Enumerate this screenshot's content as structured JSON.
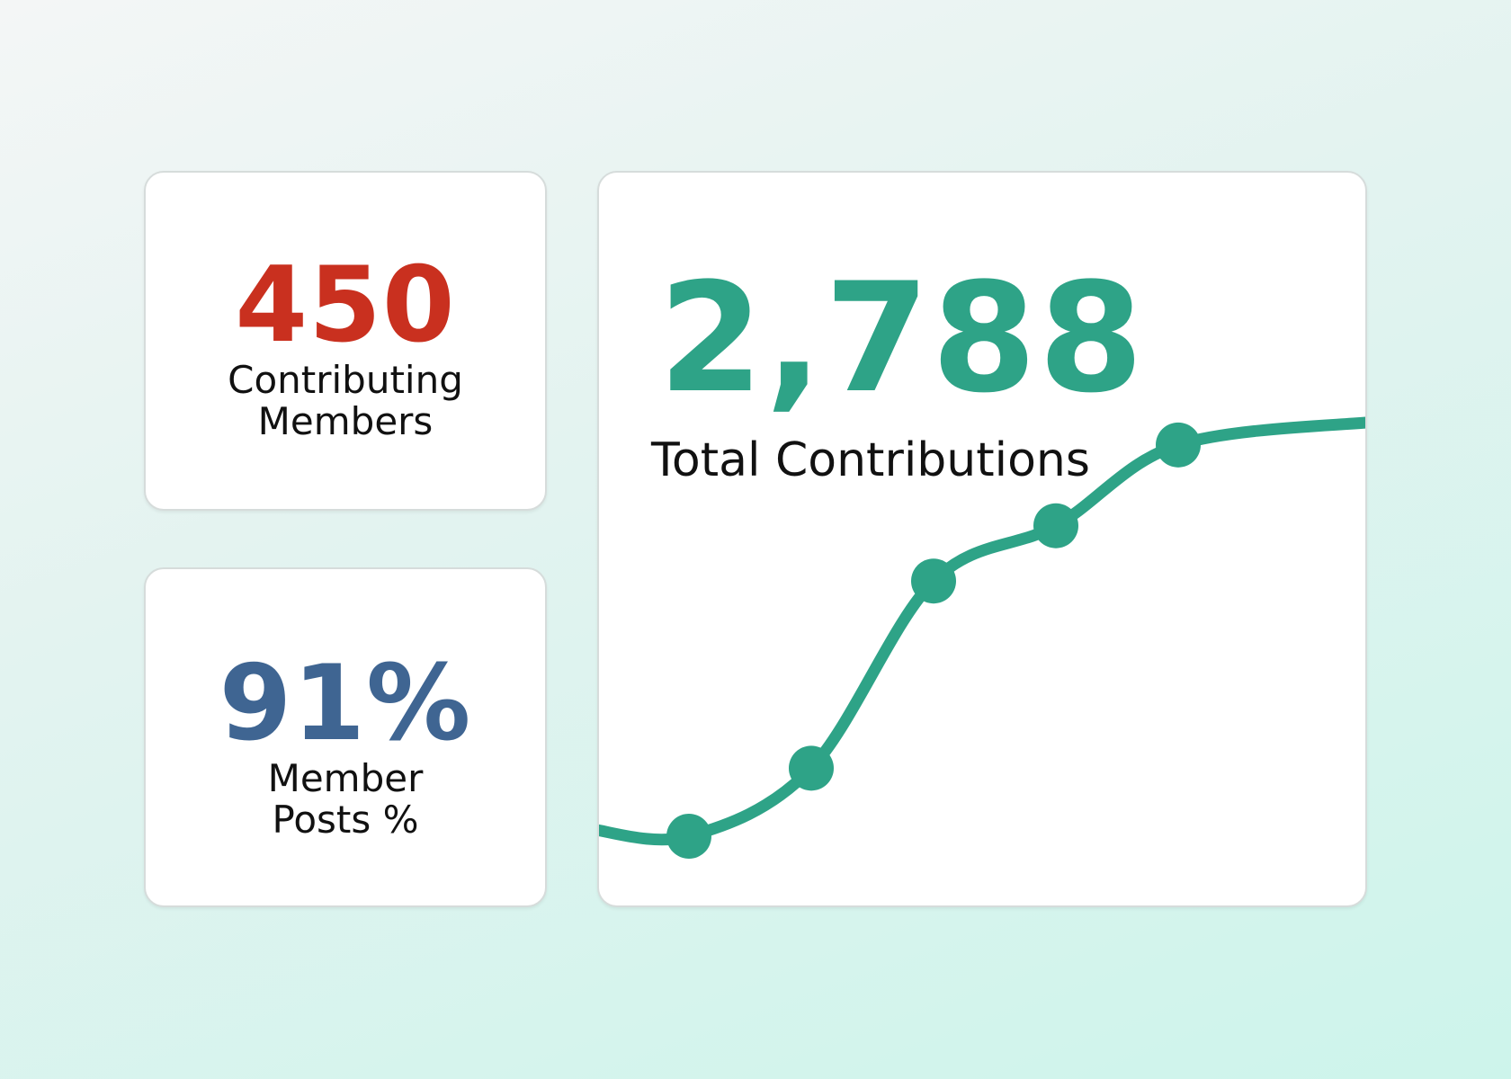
{
  "colors": {
    "members_accent": "#c9301f",
    "posts_accent": "#3f6592",
    "total_accent": "#2ea387",
    "label_text": "#111111"
  },
  "members_card": {
    "value": "450",
    "label_lines": [
      "Contributing",
      "Members"
    ]
  },
  "posts_card": {
    "value": "91%",
    "label_lines": [
      "Member",
      "Posts %"
    ]
  },
  "total_card": {
    "value": "2,788",
    "label": "Total Contributions"
  },
  "chart_data": {
    "type": "line",
    "smooth": true,
    "axes_visible": false,
    "grid": false,
    "legend": false,
    "y_relative_levels": [
      0.0,
      0.16,
      0.6,
      0.73,
      0.92
    ]
  }
}
